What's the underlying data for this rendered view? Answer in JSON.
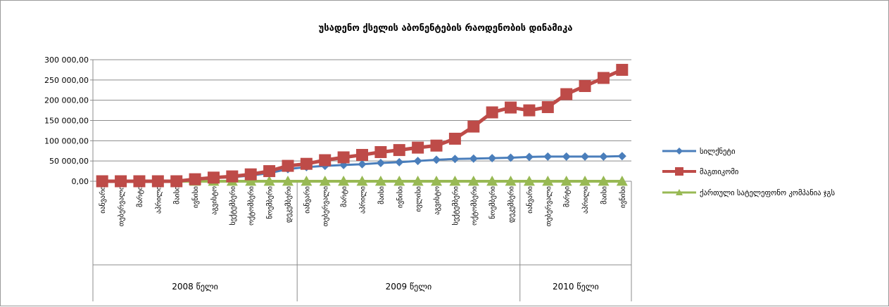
{
  "chart_data": {
    "type": "line",
    "title": "უსადენო ქსელის აბონენტების რაოდენობის დინამიკა",
    "xlabel": "",
    "ylabel": "",
    "ylim": [
      0,
      300000
    ],
    "yticks": [
      "0,00",
      "50 000,00",
      "100 000,00",
      "150 000,00",
      "200 000,00",
      "250 000,00",
      "300 000,00"
    ],
    "grid": "horizontal",
    "legend_position": "right",
    "categories": [
      "იანვარი",
      "თებერვალი",
      "მარტი",
      "აპრილი",
      "მაისი",
      "ივნისი",
      "აგვისტო",
      "სექტემბერი",
      "ოქტომბერი",
      "ნოემბერი",
      "დეკემბერი",
      "იანვარი",
      "თებერვალი",
      "მარტი",
      "აპრილი",
      "მაისი",
      "ივნისი",
      "ივლისი",
      "აგვისტო",
      "სექტემბერი",
      "ოქტომბერი",
      "ნოემბერი",
      "დეკემბერი",
      "იანვარი",
      "თებერვალი",
      "მარტი",
      "აპრილი",
      "მაისი",
      "ივნისი"
    ],
    "groups": [
      {
        "label": "2008 წელი",
        "count": 11
      },
      {
        "label": "2009 წელი",
        "count": 12
      },
      {
        "label": "2010 წელი",
        "count": 6
      }
    ],
    "series": [
      {
        "name": "სილქნეტი",
        "color": "#4a7ebb",
        "marker": "diamond",
        "values": [
          0,
          0,
          0,
          0,
          0,
          5000,
          8000,
          10000,
          14000,
          20000,
          30000,
          35000,
          38000,
          40000,
          42000,
          45000,
          47000,
          50000,
          53000,
          55000,
          56000,
          57000,
          58000,
          60000,
          61000,
          61000,
          61000,
          61000,
          62000
        ]
      },
      {
        "name": "მაგთიკომი",
        "color": "#be4b48",
        "marker": "square",
        "values": [
          0,
          0,
          0,
          0,
          0,
          5000,
          9000,
          12000,
          17000,
          25000,
          38000,
          43000,
          52000,
          59000,
          65000,
          72000,
          77000,
          83000,
          88000,
          105000,
          135000,
          170000,
          182000,
          175000,
          183000,
          215000,
          235000,
          255000,
          275000
        ]
      },
      {
        "name": "ქართული სატელეფონო კომპანია ჯგს",
        "color": "#98b954",
        "marker": "triangle",
        "values": [
          0,
          0,
          0,
          0,
          0,
          0,
          0,
          0,
          0,
          0,
          0,
          0,
          0,
          0,
          0,
          0,
          0,
          0,
          0,
          0,
          0,
          0,
          0,
          0,
          0,
          0,
          0,
          0,
          0
        ]
      }
    ]
  }
}
